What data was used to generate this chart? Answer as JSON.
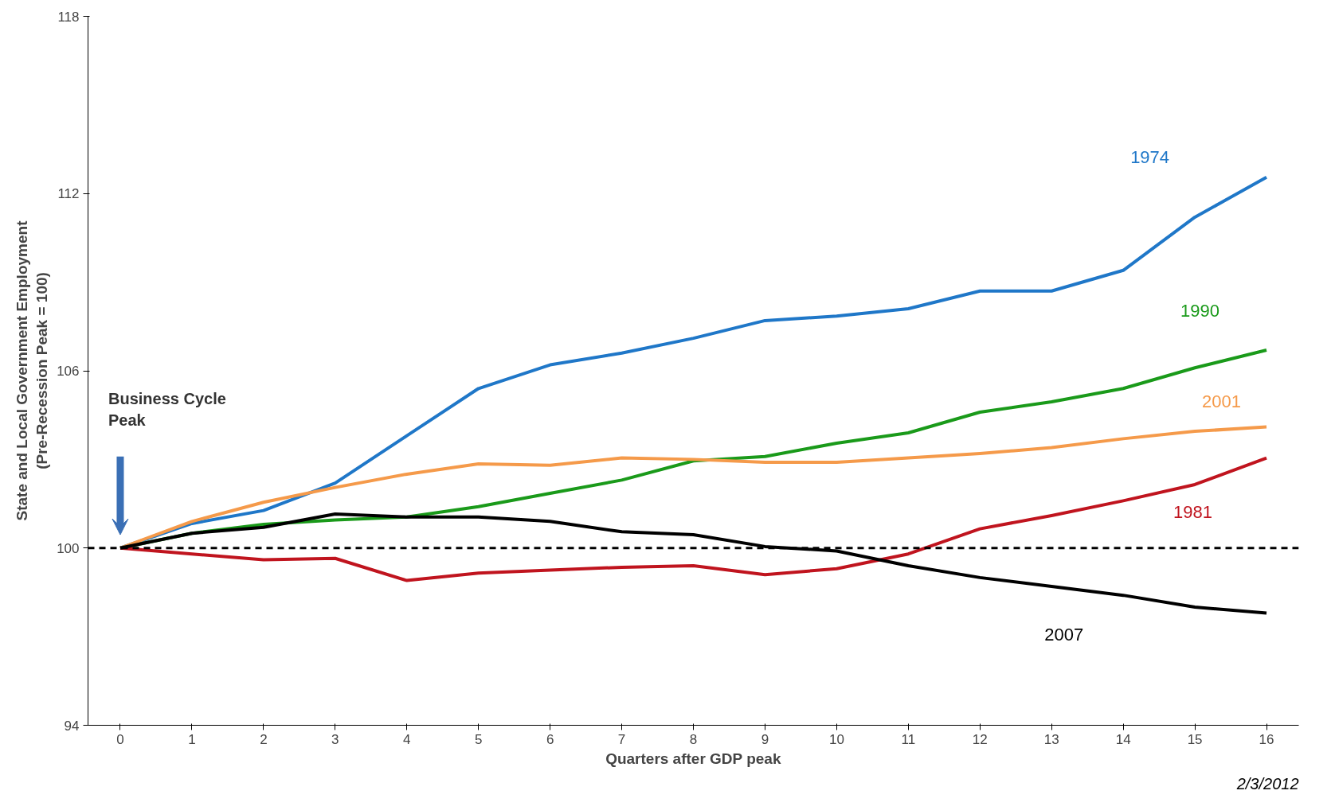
{
  "chart_data": {
    "type": "line",
    "xlabel": "Quarters after GDP peak",
    "ylabel": "State and Local Government Employment\n(Pre-Recession Peak = 100)",
    "x": [
      0,
      1,
      2,
      3,
      4,
      5,
      6,
      7,
      8,
      9,
      10,
      11,
      12,
      13,
      14,
      15,
      16
    ],
    "series": [
      {
        "name": "1974",
        "color": "#1f77c8",
        "values": [
          100,
          100.83,
          101.27,
          102.2,
          103.8,
          105.4,
          106.2,
          106.6,
          107.1,
          107.7,
          107.85,
          108.1,
          108.7,
          108.7,
          109.4,
          111.2,
          112.55
        ]
      },
      {
        "name": "1990",
        "color": "#1a9a1a",
        "values": [
          100,
          100.5,
          100.8,
          100.95,
          101.05,
          101.4,
          101.85,
          102.3,
          102.95,
          103.1,
          103.55,
          103.9,
          104.6,
          104.95,
          105.4,
          106.1,
          106.7
        ]
      },
      {
        "name": "2001",
        "color": "#f59a4a",
        "values": [
          100,
          100.9,
          101.55,
          102.05,
          102.5,
          102.85,
          102.8,
          103.05,
          103.0,
          102.9,
          102.9,
          103.05,
          103.2,
          103.4,
          103.7,
          103.95,
          104.1
        ]
      },
      {
        "name": "1981",
        "color": "#c0141e",
        "values": [
          100,
          99.8,
          99.6,
          99.65,
          98.9,
          99.15,
          99.25,
          99.35,
          99.4,
          99.1,
          99.3,
          99.8,
          100.65,
          101.1,
          101.6,
          102.15,
          103.05
        ]
      },
      {
        "name": "2007",
        "color": "#000000",
        "values": [
          100,
          100.5,
          100.7,
          101.15,
          101.05,
          101.05,
          100.9,
          100.55,
          100.45,
          100.05,
          99.9,
          99.4,
          99.0,
          98.7,
          98.4,
          98.0,
          97.8
        ]
      }
    ],
    "xlim": [
      -0.45,
      16.45
    ],
    "xticks": [
      0,
      1,
      2,
      3,
      4,
      5,
      6,
      7,
      8,
      9,
      10,
      11,
      12,
      13,
      14,
      15,
      16
    ],
    "ylim": [
      94,
      118
    ],
    "yticks": [
      94,
      100,
      106,
      112,
      118
    ],
    "ref_lines": [
      {
        "axis": "y",
        "value": 100,
        "color": "#000000",
        "line_style": "dashed"
      }
    ],
    "annotations": [
      "Business  Cycle\nPeak",
      "2/3/2012"
    ],
    "grid": false,
    "marker": "none",
    "line_style": "solid"
  }
}
